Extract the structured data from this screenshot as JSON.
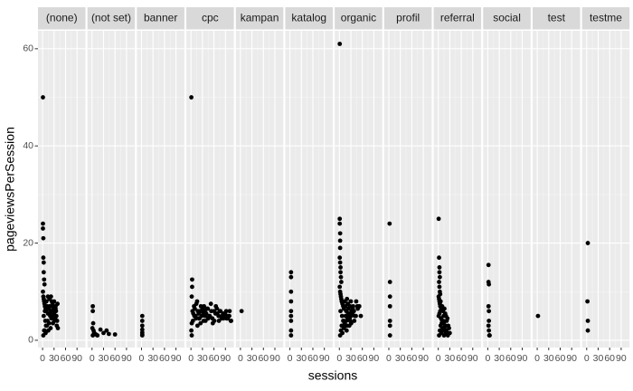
{
  "chart_data": {
    "type": "scatter",
    "x_label": "sessions",
    "y_label": "pageviewsPerSession",
    "color": "#000000",
    "grid": true,
    "xlim": [
      -12,
      112
    ],
    "ylim": [
      -1.5,
      63.7
    ],
    "xticks": [
      0,
      30,
      60,
      90
    ],
    "yticks": [
      0,
      20,
      40,
      60
    ],
    "facets": [
      {
        "name": "(none)",
        "x": [
          1,
          1,
          1,
          2,
          2,
          3,
          3,
          4,
          5,
          1,
          2,
          3,
          4,
          5,
          6,
          8,
          10,
          12,
          14,
          16,
          18,
          20,
          22,
          24,
          26,
          28,
          30,
          32,
          34,
          36,
          38,
          40,
          2,
          5,
          9,
          13,
          17,
          21,
          25,
          29,
          33,
          37,
          3,
          7,
          11,
          15,
          19,
          23,
          27,
          31,
          35,
          39,
          4,
          8,
          6,
          10,
          14,
          18,
          22,
          26,
          30,
          34
        ],
        "y": [
          50,
          24,
          23,
          21,
          17,
          16,
          14,
          12.5,
          11.5,
          10,
          9,
          8.5,
          8,
          7.5,
          7,
          6.5,
          6,
          7,
          5.5,
          6.5,
          7,
          5,
          6,
          8,
          7.5,
          6.5,
          5.5,
          6,
          7,
          5,
          4,
          2.5,
          1,
          2,
          3,
          4,
          3.5,
          2.5,
          5,
          6,
          4.5,
          3,
          5,
          4,
          3,
          2,
          5.5,
          4.5,
          3.5,
          4,
          6,
          7.5,
          2,
          1.5,
          6,
          8,
          9,
          8.5,
          9,
          7,
          8,
          6.5
        ]
      },
      {
        "name": "(not set)",
        "x": [
          2,
          2,
          3,
          1,
          4,
          6,
          10,
          14,
          22,
          30,
          38,
          44,
          60,
          2,
          5
        ],
        "y": [
          7,
          6,
          3.5,
          2.5,
          2,
          1.5,
          1.2,
          1,
          2.2,
          1.5,
          2,
          1.3,
          1.2,
          1,
          1.4
        ]
      },
      {
        "name": "banner",
        "x": [
          2,
          2,
          2,
          2,
          2,
          2,
          2
        ],
        "y": [
          5,
          4,
          3,
          2.2,
          1.6,
          1.2,
          1
        ]
      },
      {
        "name": "cpc",
        "x": [
          1,
          3,
          3,
          2,
          4,
          6,
          8,
          10,
          12,
          14,
          16,
          18,
          20,
          22,
          24,
          26,
          28,
          30,
          32,
          34,
          36,
          38,
          40,
          44,
          48,
          52,
          56,
          60,
          64,
          68,
          72,
          76,
          80,
          84,
          88,
          92,
          96,
          100,
          104,
          2,
          5,
          9,
          13,
          17,
          21,
          25,
          29,
          33,
          37,
          41,
          45,
          49,
          53,
          57,
          61,
          65,
          69,
          73,
          77,
          81,
          85,
          89,
          93,
          97,
          101,
          105,
          1,
          2
        ],
        "y": [
          50,
          12.5,
          11,
          9,
          6,
          5.5,
          7,
          6.5,
          5,
          7.5,
          8,
          6,
          5.5,
          4.5,
          6,
          7,
          5,
          6.5,
          5.5,
          7,
          6,
          4,
          5.5,
          6.5,
          5,
          7.5,
          4.5,
          6,
          5.5,
          6.5,
          5,
          6,
          4.5,
          5.5,
          5,
          6,
          4.5,
          5,
          4,
          3.5,
          4,
          5,
          4.5,
          3,
          4.5,
          3.5,
          6,
          4,
          5,
          6.5,
          4.5,
          5,
          6,
          3.5,
          4,
          7,
          5.5,
          4,
          6,
          5,
          4.5,
          5.5,
          4.5,
          5,
          6,
          4,
          2,
          1
        ]
      },
      {
        "name": "kampan",
        "x": [
          3
        ],
        "y": [
          6
        ]
      },
      {
        "name": "katalog",
        "x": [
          3,
          3,
          3,
          3,
          3,
          3,
          3,
          3,
          3
        ],
        "y": [
          14,
          13,
          10,
          8,
          6,
          5,
          4,
          2,
          1
        ]
      },
      {
        "name": "organic",
        "x": [
          1,
          1,
          1,
          2,
          2,
          2,
          1,
          2,
          3,
          3,
          4,
          5,
          1,
          2,
          3,
          4,
          5,
          6,
          8,
          10,
          12,
          14,
          16,
          18,
          20,
          22,
          24,
          26,
          28,
          30,
          32,
          34,
          36,
          38,
          40,
          44,
          48,
          52,
          56,
          2,
          4,
          6,
          8,
          10,
          12,
          14,
          16,
          18,
          20,
          22,
          24,
          26,
          28,
          30,
          3,
          7,
          11,
          15,
          19,
          23,
          27,
          31,
          35,
          39,
          43,
          47
        ],
        "y": [
          61,
          25,
          24,
          22,
          20.5,
          19,
          17,
          16,
          15,
          14,
          13,
          12,
          11,
          10,
          9.5,
          9,
          8.5,
          8,
          7.5,
          7,
          6.5,
          8,
          7,
          6,
          8.5,
          7.5,
          6.5,
          5,
          7,
          8,
          6,
          5.5,
          7,
          6,
          5,
          8,
          6.5,
          7,
          5,
          1,
          2,
          3,
          1.5,
          4,
          2.5,
          3.5,
          5,
          4,
          3,
          4.5,
          5.5,
          3,
          4,
          5,
          6,
          5,
          4,
          3,
          2,
          5.5,
          4.5,
          3.5,
          6.5,
          4,
          5,
          7
        ]
      },
      {
        "name": "profil",
        "x": [
          2,
          3,
          3,
          3,
          3,
          3,
          3
        ],
        "y": [
          24,
          12,
          9,
          7,
          4,
          3,
          1
        ]
      },
      {
        "name": "referral",
        "x": [
          1,
          2,
          3,
          3,
          4,
          2,
          3,
          4,
          5,
          1,
          2,
          3,
          4,
          5,
          6,
          8,
          10,
          12,
          14,
          16,
          18,
          20,
          22,
          24,
          26,
          28,
          30,
          2,
          4,
          6,
          8,
          10,
          12,
          14,
          16,
          18,
          20,
          1,
          3,
          5,
          7,
          9,
          11,
          13,
          15,
          17,
          19,
          21,
          23,
          25
        ],
        "y": [
          25,
          17,
          15,
          14,
          13,
          12,
          11,
          10,
          9.5,
          9,
          8.5,
          8,
          7.5,
          7,
          8,
          6.5,
          7,
          6,
          5,
          6.5,
          5.5,
          5,
          4,
          4.5,
          3,
          2.5,
          1.5,
          1,
          2,
          3,
          1.5,
          4,
          2,
          3.5,
          2.5,
          3,
          1.5,
          5,
          5.5,
          6,
          4.5,
          3.5,
          2.5,
          4,
          1,
          2,
          3,
          2,
          1.5,
          1
        ]
      },
      {
        "name": "social",
        "x": [
          2,
          2,
          3,
          2,
          3,
          3,
          2,
          3,
          4,
          5
        ],
        "y": [
          15.5,
          12,
          11.5,
          7,
          6,
          4,
          3,
          2,
          1,
          1
        ]
      },
      {
        "name": "test",
        "x": [
          2
        ],
        "y": [
          5
        ]
      },
      {
        "name": "testme",
        "x": [
          3,
          2,
          3,
          3
        ],
        "y": [
          20,
          8,
          4,
          2
        ]
      }
    ]
  }
}
